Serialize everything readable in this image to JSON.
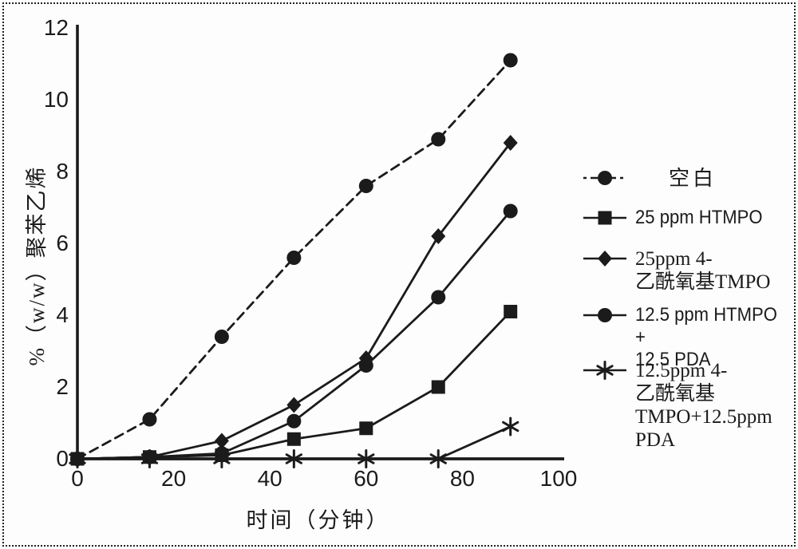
{
  "figure": {
    "ink_color": "#1b1b1b",
    "background_color": "#fdfdfd"
  },
  "chart_data": {
    "type": "line",
    "title": "",
    "xlabel": "时间（分钟）",
    "ylabel": "%（w/w）聚苯乙烯",
    "xlim": [
      0,
      100
    ],
    "ylim": [
      0,
      12
    ],
    "xticks": [
      "0",
      "20",
      "40",
      "60",
      "80",
      "100"
    ],
    "xtick_values": [
      0,
      20,
      40,
      60,
      80,
      100
    ],
    "yticks": [
      "0",
      "2",
      "4",
      "6",
      "8",
      "10",
      "12"
    ],
    "ytick_values": [
      0,
      2,
      4,
      6,
      8,
      10,
      12
    ],
    "grid": false,
    "legend_position": "right",
    "x": [
      0,
      15,
      30,
      45,
      60,
      75,
      90
    ],
    "series": [
      {
        "name": "空白",
        "marker": "circle",
        "line": "dashed",
        "values": [
          0,
          1.1,
          3.4,
          5.6,
          7.6,
          8.9,
          11.1
        ]
      },
      {
        "name": "25 ppm HTMPO",
        "marker": "square",
        "line": "solid",
        "values": [
          0,
          0.05,
          0.1,
          0.55,
          0.85,
          2.0,
          4.1
        ]
      },
      {
        "name": "25ppm 4-乙酰氧基TMPO",
        "marker": "diamond",
        "line": "solid",
        "values": [
          0,
          0.05,
          0.5,
          1.5,
          2.8,
          6.2,
          8.8
        ]
      },
      {
        "name": "12.5 ppm HTMPO + 12.5 PDA",
        "marker": "circle",
        "line": "solid",
        "values": [
          0,
          0.05,
          0.15,
          1.05,
          2.6,
          4.5,
          6.9
        ]
      },
      {
        "name": "12.5ppm 4-乙酰氧基TMPO+12.5ppm PDA",
        "marker": "asterisk",
        "line": "solid",
        "values": [
          0,
          0,
          0,
          0,
          0,
          0,
          0.9
        ]
      }
    ]
  },
  "legend": {
    "items": [
      {
        "label": "空白"
      },
      {
        "label": "25 ppm HTMPO"
      },
      {
        "label": "25ppm 4-\n乙酰氧基TMPO"
      },
      {
        "label": "12.5 ppm HTMPO +\n12.5 PDA"
      },
      {
        "label": "12.5ppm 4-\n乙酰氧基\nTMPO+12.5ppm\nPDA"
      }
    ]
  }
}
